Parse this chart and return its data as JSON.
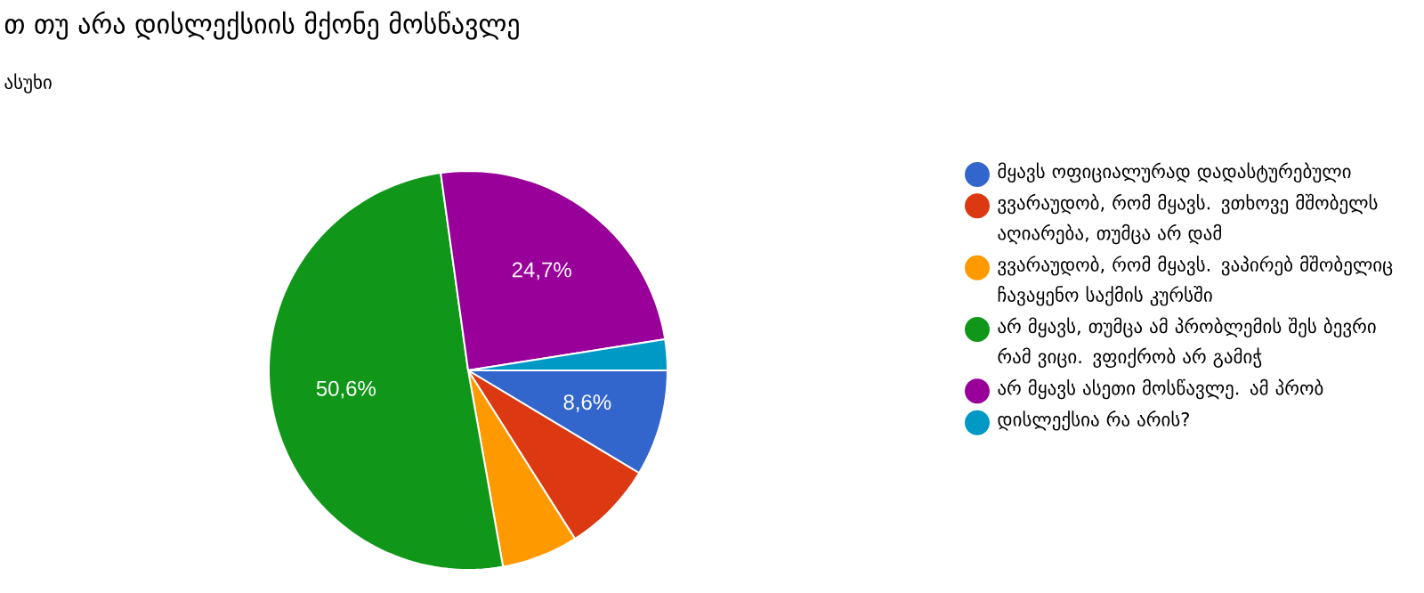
{
  "chart_data": {
    "type": "pie",
    "title": "თ თუ არა დისლექსიის მქონე მოსწავლე",
    "subtitle": "ასუხი",
    "categories": [
      "მყავს ოფიციალურად დადასტურებული",
      "ვვარაუდობ, რომ მყავს. ვთხოვე მშობელს აღიარება, თუმცა არ დამ",
      "ვვარაუდობ, რომ მყავს. ვაპირებ მშობელიც ჩავაყენო საქმის კურსში",
      "არ მყავს, თუმცა ამ პრობლემის შეს ბევრი რამ ვიცი. ვფიქრობ არ გამიჭ",
      "არ მყავს ასეთი მოსწავლე. ამ პრობ",
      "დისლექსია რა არის?"
    ],
    "values": [
      8.6,
      7.4,
      6.2,
      50.6,
      24.7,
      2.5
    ],
    "colors": [
      "#3366cc",
      "#dc3912",
      "#ff9900",
      "#109618",
      "#990099",
      "#0099c6"
    ],
    "value_labels": [
      "8,6%",
      null,
      null,
      "50,6%",
      "24,7%",
      null
    ],
    "legend": "right"
  }
}
